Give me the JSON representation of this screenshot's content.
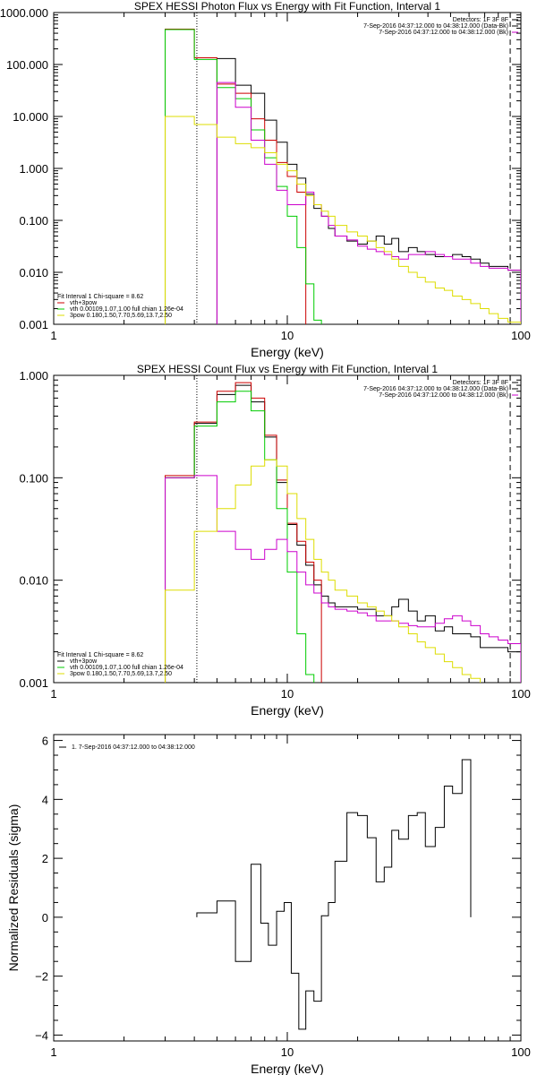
{
  "chart_data": [
    {
      "type": "line",
      "title": "SPEX HESSI Photon Flux vs Energy with Fit Function, Interval 1",
      "xlabel": "Energy (keV)",
      "ylabel": "",
      "xscale": "log",
      "yscale": "log",
      "xlim": [
        1,
        100
      ],
      "ylim": [
        0.001,
        1000
      ],
      "xticks": [
        {
          "v": 1,
          "label": "1"
        },
        {
          "v": 10,
          "label": "10"
        },
        {
          "v": 100,
          "label": "100"
        }
      ],
      "yticks": [
        {
          "v": 0.001,
          "label": "0.001"
        },
        {
          "v": 0.01,
          "label": "0.010"
        },
        {
          "v": 0.1,
          "label": "0.100"
        },
        {
          "v": 1,
          "label": "1.000"
        },
        {
          "v": 10,
          "label": "10.000"
        },
        {
          "v": 100,
          "label": "100.000"
        },
        {
          "v": 1000,
          "label": "1000.000"
        }
      ],
      "dotted_line_x": 4.1,
      "dashed_line_x": 90,
      "info_lines": [
        "Detectors: 1F 3F 8F",
        "7-Sep-2016 04:37:12.000 to 04:38:12.000 (Data-Bk)",
        "7-Sep-2016 04:37:12.000 to 04:38:12.000 (Bk)"
      ],
      "info_colors": [
        "#000000",
        "#000000",
        "#cc00cc"
      ],
      "legend_lines": [
        "Fit Interval 1   Chi-square = 8.62",
        "vth+3pow",
        "vth 0.00109,1.07,1.00  full chian 1.26e-04",
        "3pow 0.180,1.50,7.70,5.69,13.7,2.50"
      ],
      "legend_colors": [
        "#000000",
        "#cc0000",
        "#00cc00",
        "#dddd00"
      ],
      "edges": [
        3,
        4,
        5,
        6,
        7,
        8,
        9,
        10,
        11,
        12,
        13,
        14,
        15,
        16,
        18,
        20,
        22,
        24,
        26,
        28,
        30,
        33,
        36,
        39,
        43,
        47,
        51,
        56,
        61,
        67,
        73,
        80,
        88,
        100
      ],
      "series": [
        {
          "name": "",
          "color": "#000000",
          "start": 2,
          "values": [
            130,
            40,
            28,
            8.5,
            3.2,
            1.2,
            0.65,
            0.32,
            0.17,
            0.12,
            0.07,
            0.05,
            0.04,
            0.035,
            0.04,
            0.05,
            0.035,
            0.045,
            0.025,
            0.03,
            0.025,
            0.022,
            0.02,
            0.02,
            0.022,
            0.02,
            0.018,
            0.015,
            0.013,
            0.013,
            0.011
          ]
        },
        {
          "name": "",
          "color": "#cc0000",
          "start": 0,
          "values": [
            480,
            135,
            42,
            28,
            9,
            3.5,
            1.3,
            0.7,
            0.35
          ]
        },
        {
          "name": "",
          "color": "#00cc00",
          "start": 0,
          "values": [
            470,
            125,
            36,
            22,
            5.5,
            1.6,
            0.45,
            0.12,
            0.03,
            0.006,
            0.0012
          ]
        },
        {
          "name": "",
          "color": "#cc00cc",
          "start": 2,
          "values": [
            45,
            15,
            3.5,
            1.2,
            0.38,
            0.2,
            0.2,
            0.35,
            0.2,
            0.12,
            0.08,
            0.05,
            0.042,
            0.032,
            0.028,
            0.025,
            0.022,
            0.02,
            0.018,
            0.022,
            0.022,
            0.025,
            0.022,
            0.02,
            0.018,
            0.018,
            0.015,
            0.013,
            0.012,
            0.012,
            0.011
          ]
        },
        {
          "name": "",
          "color": "#dddd00",
          "start": 0,
          "values": [
            10,
            7,
            4,
            3,
            2.5,
            2,
            1.2,
            0.9,
            0.5,
            0.3,
            0.2,
            0.15,
            0.12,
            0.08,
            0.06,
            0.05,
            0.04,
            0.03,
            0.025,
            0.018,
            0.013,
            0.01,
            0.008,
            0.0065,
            0.005,
            0.0045,
            0.0035,
            0.003,
            0.0025,
            0.002,
            0.0016,
            0.0013,
            0.0011
          ]
        }
      ]
    },
    {
      "type": "line",
      "title": "SPEX HESSI Count Flux vs Energy with Fit Function, Interval 1",
      "xlabel": "Energy (keV)",
      "ylabel": "",
      "xscale": "log",
      "yscale": "log",
      "xlim": [
        1,
        100
      ],
      "ylim": [
        0.001,
        1
      ],
      "xticks": [
        {
          "v": 1,
          "label": "1"
        },
        {
          "v": 10,
          "label": "10"
        },
        {
          "v": 100,
          "label": "100"
        }
      ],
      "yticks": [
        {
          "v": 0.001,
          "label": "0.001"
        },
        {
          "v": 0.01,
          "label": "0.010"
        },
        {
          "v": 0.1,
          "label": "0.100"
        },
        {
          "v": 1,
          "label": "1.000"
        }
      ],
      "dotted_line_x": 4.1,
      "dashed_line_x": 90,
      "info_lines": [
        "Detectors: 1F 3F 8F",
        "7-Sep-2016 04:37:12.000 to 04:38:12.000 (Data-Bk)",
        "7-Sep-2016 04:37:12.000 to 04:38:12.000 (Bk)"
      ],
      "info_colors": [
        "#000000",
        "#000000",
        "#cc00cc"
      ],
      "legend_lines": [
        "Fit Interval 1   Chi-square = 8.62",
        "vth+3pow",
        "vth 0.00109,1.07,1.00  full chian 1.26e-04",
        "3pow 0.180,1.50,7.70,5.69,13.7,2.50"
      ],
      "legend_colors": [
        "#000000",
        "#000000",
        "#00cc00",
        "#dddd00"
      ],
      "edges": [
        3,
        4,
        5,
        6,
        7,
        8,
        9,
        10,
        11,
        12,
        13,
        14,
        15,
        16,
        18,
        20,
        22,
        24,
        26,
        28,
        30,
        33,
        36,
        39,
        43,
        47,
        51,
        56,
        61,
        67,
        73,
        80,
        88,
        100
      ],
      "series": [
        {
          "name": "",
          "color": "#000000",
          "start": 0,
          "values": [
            0.1,
            0.34,
            0.65,
            0.8,
            0.55,
            0.25,
            0.09,
            0.035,
            0.022,
            0.014,
            0.009,
            0.007,
            0.006,
            0.0055,
            0.0055,
            0.0052,
            0.0052,
            0.0045,
            0.0045,
            0.0055,
            0.0065,
            0.005,
            0.004,
            0.0045,
            0.0032,
            0.0035,
            0.003,
            0.003,
            0.0028,
            0.0022,
            0.0022,
            0.0022,
            0.002
          ]
        },
        {
          "name": "",
          "color": "#cc0000",
          "start": 0,
          "values": [
            0.105,
            0.35,
            0.7,
            0.85,
            0.6,
            0.26,
            0.095,
            0.036,
            0.024,
            0.015,
            0.01
          ]
        },
        {
          "name": "",
          "color": "#00cc00",
          "start": 0,
          "values": [
            0.1,
            0.32,
            0.55,
            0.7,
            0.45,
            0.15,
            0.05,
            0.012,
            0.003,
            0.0012
          ]
        },
        {
          "name": "",
          "color": "#cc00cc",
          "start": 0,
          "values": [
            0.1,
            0.105,
            0.03,
            0.02,
            0.016,
            0.02,
            0.025,
            0.019,
            0.012,
            0.009,
            0.0075,
            0.006,
            0.0055,
            0.0052,
            0.005,
            0.0048,
            0.0045,
            0.004,
            0.004,
            0.004,
            0.0038,
            0.0036,
            0.0035,
            0.0035,
            0.0038,
            0.0042,
            0.0045,
            0.004,
            0.0036,
            0.003,
            0.0028,
            0.0026,
            0.0024
          ]
        },
        {
          "name": "",
          "color": "#dddd00",
          "start": 0,
          "values": [
            0.008,
            0.03,
            0.05,
            0.085,
            0.13,
            0.15,
            0.13,
            0.07,
            0.04,
            0.025,
            0.016,
            0.012,
            0.01,
            0.008,
            0.007,
            0.006,
            0.0055,
            0.005,
            0.0045,
            0.004,
            0.0035,
            0.003,
            0.0025,
            0.0022,
            0.0019,
            0.0016,
            0.0014,
            0.0012,
            0.0011
          ]
        }
      ]
    },
    {
      "type": "line",
      "title": "",
      "xlabel": "Energy (keV)",
      "ylabel": "Normalized Residuals (sigma)",
      "xscale": "log",
      "yscale": "linear",
      "xlim": [
        1,
        100
      ],
      "ylim": [
        -4.2,
        6.2
      ],
      "xticks": [
        {
          "v": 1,
          "label": "1"
        },
        {
          "v": 10,
          "label": "10"
        },
        {
          "v": 100,
          "label": "100"
        }
      ],
      "yticks": [
        {
          "v": -4,
          "label": "−4"
        },
        {
          "v": -2,
          "label": "−2"
        },
        {
          "v": 0,
          "label": "0"
        },
        {
          "v": 2,
          "label": "2"
        },
        {
          "v": 4,
          "label": "4"
        },
        {
          "v": 6,
          "label": "6"
        }
      ],
      "legend_lines": [
        "1.  7-Sep-2016 04:37:12.000 to 04:38:12.000"
      ],
      "legend_colors": [
        "#000000"
      ],
      "edges": [
        4.1,
        5,
        6,
        7,
        7.7,
        8.3,
        9,
        9.7,
        10.4,
        11.2,
        12,
        13,
        14,
        15,
        16,
        18,
        20,
        22,
        24,
        26,
        28,
        30,
        33,
        36,
        39,
        43,
        47,
        51,
        56,
        61,
        67,
        73,
        80,
        88
      ],
      "series": [
        {
          "name": "",
          "color": "#000000",
          "start": 0,
          "values": [
            0.15,
            0.55,
            -1.5,
            1.8,
            -0.2,
            -0.95,
            0.2,
            0.5,
            -1.9,
            -3.8,
            -2.5,
            -2.85,
            0.05,
            0.5,
            1.9,
            3.55,
            3.45,
            2.7,
            1.2,
            1.7,
            2.95,
            2.65,
            3.45,
            3.55,
            2.4,
            3.05,
            4.45,
            4.2,
            5.35
          ]
        }
      ]
    }
  ]
}
